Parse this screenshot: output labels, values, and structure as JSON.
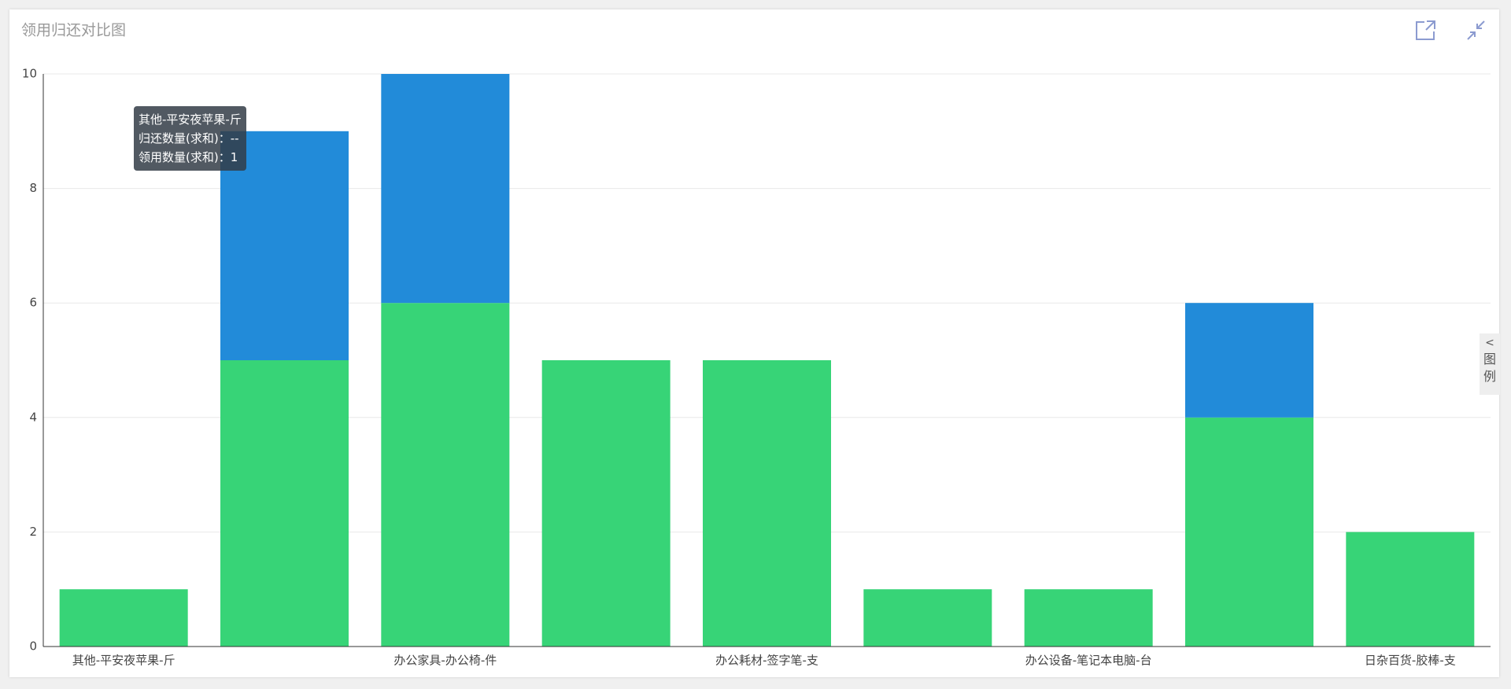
{
  "chart_data": {
    "type": "stacked-bar",
    "title": "领用归还对比图",
    "categories": [
      "其他-平安夜苹果-斤",
      null,
      "办公家具-办公椅-件",
      null,
      "办公耗材-签字笔-支",
      null,
      "办公设备-笔记本电脑-台",
      null,
      "日杂百货-胶棒-支"
    ],
    "series": [
      {
        "name": "领用数量(求和)",
        "color": "#37d477",
        "values": [
          1,
          5,
          6,
          5,
          5,
          1,
          1,
          4,
          2
        ]
      },
      {
        "name": "归还数量(求和)",
        "color": "#228bd9",
        "values": [
          null,
          4,
          4,
          null,
          null,
          null,
          null,
          2,
          null
        ]
      }
    ],
    "ylim": [
      0,
      10
    ],
    "yticks": [
      0,
      2,
      4,
      6,
      8,
      10
    ],
    "grid": true,
    "tooltip": {
      "title": "其他-平安夜苹果-斤",
      "separator": "：",
      "values": [
        1,
        "--"
      ]
    },
    "legend_toggle": "图例"
  }
}
